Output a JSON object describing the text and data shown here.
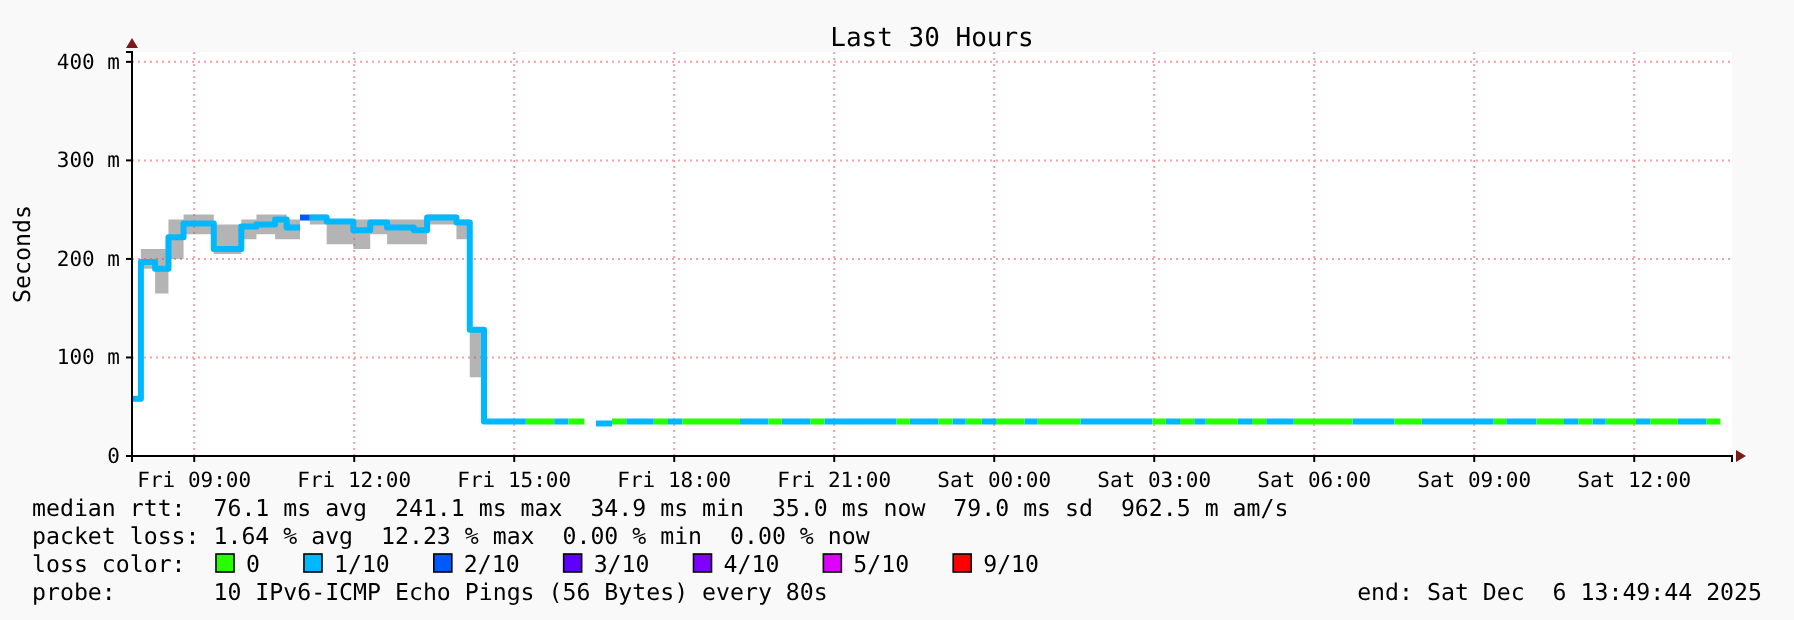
{
  "chart_data": {
    "type": "step",
    "title": "Last 30 Hours",
    "ylabel": "Seconds",
    "legend_title": "loss color:",
    "legend": "bottom",
    "grid": true,
    "xlim": [
      "2025-12-05T07:50",
      "2025-12-06T13:50"
    ],
    "xticks": [
      {
        "value": "2025-12-05T09:00",
        "label": "Fri 09:00"
      },
      {
        "value": "2025-12-05T12:00",
        "label": "Fri 12:00"
      },
      {
        "value": "2025-12-05T15:00",
        "label": "Fri 15:00"
      },
      {
        "value": "2025-12-05T18:00",
        "label": "Fri 18:00"
      },
      {
        "value": "2025-12-05T21:00",
        "label": "Fri 21:00"
      },
      {
        "value": "2025-12-06T00:00",
        "label": "Sat 00:00"
      },
      {
        "value": "2025-12-06T03:00",
        "label": "Sat 03:00"
      },
      {
        "value": "2025-12-06T06:00",
        "label": "Sat 06:00"
      },
      {
        "value": "2025-12-06T09:00",
        "label": "Sat 09:00"
      },
      {
        "value": "2025-12-06T12:00",
        "label": "Sat 12:00"
      }
    ],
    "ylim": [
      0,
      410
    ],
    "yticks": [
      0,
      {
        "value": 100,
        "label": "100 m"
      },
      {
        "value": 200,
        "label": "200 m"
      },
      {
        "value": 300,
        "label": "300 m"
      },
      {
        "value": 400,
        "label": "400 m"
      }
    ],
    "series": [
      {
        "name": "0",
        "color": "#26ff00",
        "x": [
          "2025-12-05T15:13",
          "2025-12-05T15:45"
        ],
        "values": [
          35,
          35
        ]
      },
      {
        "name": "1/10",
        "color": "#00b8ff",
        "x": [
          "2025-12-05T07:50",
          "2025-12-05T08:00",
          "2025-12-05T08:16",
          "2025-12-05T08:31",
          "2025-12-05T08:48",
          "2025-12-05T09:22",
          "2025-12-05T09:53",
          "2025-12-05T10:10",
          "2025-12-05T10:31",
          "2025-12-05T10:44",
          "2025-12-05T10:59"
        ],
        "values": [
          58,
          197,
          190,
          222,
          236,
          210,
          233,
          235,
          240,
          232,
          232
        ],
        "lower": [
          null,
          190,
          165,
          200,
          225,
          205,
          220,
          225,
          220,
          220,
          220
        ],
        "upper": [
          null,
          210,
          210,
          240,
          245,
          235,
          240,
          245,
          245,
          240,
          240
        ]
      },
      {
        "name": "2/10",
        "color": "#0059ff",
        "x": [
          "2025-12-05T10:59",
          "2025-12-05T11:10"
        ],
        "values": [
          242,
          242
        ]
      },
      {
        "name": "3/10",
        "color": "#5e00ff"
      },
      {
        "name": "4/10",
        "color": "#7e00ff"
      },
      {
        "name": "5/10",
        "color": "#dd00ff"
      },
      {
        "name": "9/10",
        "color": "#ff0000"
      },
      {
        "color": "#00b8ff",
        "x": [
          "2025-12-05T11:10",
          "2025-12-05T11:29",
          "2025-12-05T11:59",
          "2025-12-05T12:18",
          "2025-12-05T12:37",
          "2025-12-05T13:07",
          "2025-12-05T13:22",
          "2025-12-05T13:55",
          "2025-12-05T14:10",
          "2025-12-05T14:26",
          "2025-12-05T15:13"
        ],
        "values": [
          242,
          238,
          229,
          237,
          232,
          229,
          242,
          237,
          128,
          35,
          35
        ],
        "lower": [
          235,
          215,
          210,
          225,
          215,
          215,
          235,
          220,
          80,
          80,
          null
        ],
        "upper": [
          245,
          240,
          240,
          240,
          240,
          240,
          245,
          240,
          128,
          128,
          null
        ]
      },
      {
        "color": "#00b8ff",
        "x": [
          "2025-12-05T15:45",
          "2025-12-05T16:01"
        ],
        "values": [
          35,
          35
        ]
      },
      {
        "color": "#00b8ff",
        "x": [
          "2025-12-05T16:32",
          "2025-12-05T16:50"
        ],
        "values": [
          33,
          33
        ]
      },
      {
        "color": "#00b8ff",
        "x": [
          "2025-12-05T17:06",
          "2025-12-05T17:37"
        ],
        "values": [
          35,
          35
        ]
      },
      {
        "color": "#00b8ff",
        "x": [
          "2025-12-05T17:53",
          "2025-12-05T18:09"
        ],
        "values": [
          35,
          35
        ]
      },
      {
        "color": "#00b8ff",
        "x": [
          "2025-12-05T19:14",
          "2025-12-05T19:46"
        ],
        "values": [
          35,
          35
        ]
      },
      {
        "color": "#00b8ff",
        "x": [
          "2025-12-05T20:01",
          "2025-12-05T20:33"
        ],
        "values": [
          35,
          35
        ]
      },
      {
        "color": "#00b8ff",
        "x": [
          "2025-12-05T20:49",
          "2025-12-05T22:10"
        ],
        "values": [
          35,
          35
        ]
      },
      {
        "color": "#00b8ff",
        "x": [
          "2025-12-05T22:25",
          "2025-12-05T22:57"
        ],
        "values": [
          35,
          35
        ]
      },
      {
        "color": "#00b8ff",
        "x": [
          "2025-12-05T23:13",
          "2025-12-05T23:28"
        ],
        "values": [
          35,
          35
        ]
      },
      {
        "color": "#00b8ff",
        "x": [
          "2025-12-05T23:46",
          "2025-12-06T00:02"
        ],
        "values": [
          35,
          35
        ]
      },
      {
        "color": "#00b8ff",
        "x": [
          "2025-12-06T00:34",
          "2025-12-06T00:49"
        ],
        "values": [
          35,
          35
        ]
      },
      {
        "color": "#00b8ff",
        "x": [
          "2025-12-06T01:37",
          "2025-12-06T02:58"
        ],
        "values": [
          35,
          35
        ]
      },
      {
        "color": "#00b8ff",
        "x": [
          "2025-12-06T03:13",
          "2025-12-06T03:29"
        ],
        "values": [
          35,
          35
        ]
      },
      {
        "color": "#00b8ff",
        "x": [
          "2025-12-06T03:45",
          "2025-12-06T03:58"
        ],
        "values": [
          35,
          35
        ]
      },
      {
        "color": "#00b8ff",
        "x": [
          "2025-12-06T04:34",
          "2025-12-06T04:50"
        ],
        "values": [
          35,
          35
        ]
      },
      {
        "color": "#00b8ff",
        "x": [
          "2025-12-06T05:06",
          "2025-12-06T05:37"
        ],
        "values": [
          35,
          35
        ]
      },
      {
        "color": "#00b8ff",
        "x": [
          "2025-12-06T06:43",
          "2025-12-06T07:30"
        ],
        "values": [
          35,
          35
        ]
      },
      {
        "color": "#00b8ff",
        "x": [
          "2025-12-06T08:01",
          "2025-12-06T09:22"
        ],
        "values": [
          35,
          35
        ]
      },
      {
        "color": "#00b8ff",
        "x": [
          "2025-12-06T09:36",
          "2025-12-06T10:10"
        ],
        "values": [
          35,
          35
        ]
      },
      {
        "color": "#00b8ff",
        "x": [
          "2025-12-06T10:41",
          "2025-12-06T10:57"
        ],
        "values": [
          35,
          35
        ]
      },
      {
        "color": "#00b8ff",
        "x": [
          "2025-12-06T11:13",
          "2025-12-06T11:28"
        ],
        "values": [
          35,
          35
        ]
      },
      {
        "color": "#00b8ff",
        "x": [
          "2025-12-06T12:02",
          "2025-12-06T12:18"
        ],
        "values": [
          35,
          35
        ]
      },
      {
        "color": "#00b8ff",
        "x": [
          "2025-12-06T12:49",
          "2025-12-06T13:21"
        ],
        "values": [
          35,
          35
        ]
      },
      {
        "color": "#26ff00",
        "x": [
          "2025-12-05T16:01",
          "2025-12-05T16:19"
        ],
        "values": [
          35,
          35
        ]
      },
      {
        "color": "#26ff00",
        "x": [
          "2025-12-05T16:50",
          "2025-12-05T17:06"
        ],
        "values": [
          35,
          35
        ]
      },
      {
        "color": "#26ff00",
        "x": [
          "2025-12-05T17:37",
          "2025-12-05T17:53"
        ],
        "values": [
          35,
          35
        ]
      },
      {
        "color": "#26ff00",
        "x": [
          "2025-12-05T18:09",
          "2025-12-05T19:14"
        ],
        "values": [
          35,
          35
        ]
      },
      {
        "color": "#26ff00",
        "x": [
          "2025-12-05T19:46",
          "2025-12-05T20:01"
        ],
        "values": [
          35,
          35
        ]
      },
      {
        "color": "#26ff00",
        "x": [
          "2025-12-05T20:33",
          "2025-12-05T20:49"
        ],
        "values": [
          35,
          35
        ]
      },
      {
        "color": "#26ff00",
        "x": [
          "2025-12-05T22:10",
          "2025-12-05T22:25"
        ],
        "values": [
          35,
          35
        ]
      },
      {
        "color": "#26ff00",
        "x": [
          "2025-12-05T22:57",
          "2025-12-05T23:13"
        ],
        "values": [
          35,
          35
        ]
      },
      {
        "color": "#26ff00",
        "x": [
          "2025-12-05T23:28",
          "2025-12-05T23:46"
        ],
        "values": [
          35,
          35
        ]
      },
      {
        "color": "#26ff00",
        "x": [
          "2025-12-06T00:02",
          "2025-12-06T00:34"
        ],
        "values": [
          35,
          35
        ]
      },
      {
        "color": "#26ff00",
        "x": [
          "2025-12-06T00:49",
          "2025-12-06T01:37"
        ],
        "values": [
          35,
          35
        ]
      },
      {
        "color": "#26ff00",
        "x": [
          "2025-12-06T02:58",
          "2025-12-06T03:13"
        ],
        "values": [
          35,
          35
        ]
      },
      {
        "color": "#26ff00",
        "x": [
          "2025-12-06T03:29",
          "2025-12-06T03:45"
        ],
        "values": [
          35,
          35
        ]
      },
      {
        "color": "#26ff00",
        "x": [
          "2025-12-06T03:58",
          "2025-12-06T04:34"
        ],
        "values": [
          35,
          35
        ]
      },
      {
        "color": "#26ff00",
        "x": [
          "2025-12-06T04:50",
          "2025-12-06T05:06"
        ],
        "values": [
          35,
          35
        ]
      },
      {
        "color": "#26ff00",
        "x": [
          "2025-12-06T05:37",
          "2025-12-06T06:43"
        ],
        "values": [
          35,
          35
        ]
      },
      {
        "color": "#26ff00",
        "x": [
          "2025-12-06T07:30",
          "2025-12-06T08:01"
        ],
        "values": [
          35,
          35
        ]
      },
      {
        "color": "#26ff00",
        "x": [
          "2025-12-06T09:22",
          "2025-12-06T09:36"
        ],
        "values": [
          35,
          35
        ]
      },
      {
        "color": "#26ff00",
        "x": [
          "2025-12-06T10:10",
          "2025-12-06T10:41"
        ],
        "values": [
          35,
          35
        ]
      },
      {
        "color": "#26ff00",
        "x": [
          "2025-12-06T10:57",
          "2025-12-06T11:13"
        ],
        "values": [
          35,
          35
        ]
      },
      {
        "color": "#26ff00",
        "x": [
          "2025-12-06T11:28",
          "2025-12-06T12:02"
        ],
        "values": [
          35,
          35
        ]
      },
      {
        "color": "#26ff00",
        "x": [
          "2025-12-06T12:18",
          "2025-12-06T12:49"
        ],
        "values": [
          35,
          35
        ]
      },
      {
        "color": "#26ff00",
        "x": [
          "2025-12-06T13:21",
          "2025-12-06T13:37"
        ],
        "values": [
          35,
          35
        ]
      }
    ],
    "annotations": [
      "median rtt:  76.1 ms avg  241.1 ms max  34.9 ms min  35.0 ms now  79.0 ms sd  962.5 m am/s",
      "packet loss: 1.64 % avg  12.23 % max  0.00 % min  0.00 % now",
      "probe:       10 IPv6-ICMP Echo Pings (56 Bytes) every 80s",
      "end: Sat Dec  6 13:49:44 2025"
    ]
  }
}
